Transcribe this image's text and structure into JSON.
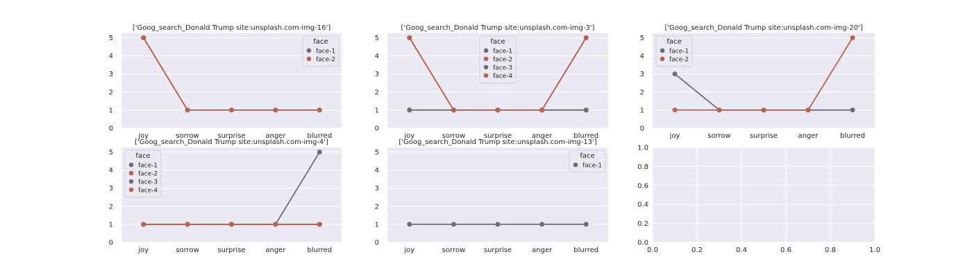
{
  "legend_title": "face",
  "colors": {
    "face-1": "#6b6f74",
    "face-2": "#c0604a",
    "face-3": "#6b6f74",
    "face-4": "#c0604a",
    "panel_bg": "#eaeaf2",
    "grid": "#ffffff",
    "text": "#262626"
  },
  "chart_data": [
    {
      "type": "line",
      "title": "['Goog_search_Donald Trump site:unsplash.com-img-16']",
      "categories": [
        "joy",
        "sorrow",
        "surprise",
        "anger",
        "blurred"
      ],
      "yticks": [
        "0",
        "1",
        "2",
        "3",
        "4",
        "5"
      ],
      "ylim": [
        0,
        5.25
      ],
      "legend_position": "upper right",
      "series": [
        {
          "name": "face-1",
          "values": [
            5,
            1,
            1,
            1,
            1
          ]
        },
        {
          "name": "face-2",
          "values": [
            5,
            1,
            1,
            1,
            1
          ]
        }
      ]
    },
    {
      "type": "line",
      "title": "['Goog_search_Donald Trump site:unsplash.com-img-3']",
      "categories": [
        "joy",
        "sorrow",
        "surprise",
        "anger",
        "blurred"
      ],
      "yticks": [
        "0",
        "1",
        "2",
        "3",
        "4",
        "5"
      ],
      "ylim": [
        0,
        5.25
      ],
      "legend_position": "upper center",
      "series": [
        {
          "name": "face-1",
          "values": [
            5,
            1,
            1,
            1,
            5
          ]
        },
        {
          "name": "face-2",
          "values": [
            1,
            1,
            1,
            1,
            1
          ]
        },
        {
          "name": "face-3",
          "values": [
            1,
            1,
            1,
            1,
            1
          ]
        },
        {
          "name": "face-4",
          "values": [
            5,
            1,
            1,
            1,
            5
          ]
        }
      ]
    },
    {
      "type": "line",
      "title": "['Goog_search_Donald Trump site:unsplash.com-img-20']",
      "categories": [
        "joy",
        "sorrow",
        "surprise",
        "anger",
        "blurred"
      ],
      "yticks": [
        "0",
        "1",
        "2",
        "3",
        "4",
        "5"
      ],
      "ylim": [
        0,
        5.25
      ],
      "legend_position": "upper left",
      "series": [
        {
          "name": "face-1",
          "values": [
            3,
            1,
            1,
            1,
            1
          ]
        },
        {
          "name": "face-2",
          "values": [
            1,
            1,
            1,
            1,
            5
          ]
        }
      ]
    },
    {
      "type": "line",
      "title": "['Goog_search_Donald Trump site:unsplash.com-img-4']",
      "categories": [
        "joy",
        "sorrow",
        "surprise",
        "anger",
        "blurred"
      ],
      "yticks": [
        "0",
        "1",
        "2",
        "3",
        "4",
        "5"
      ],
      "ylim": [
        0,
        5.25
      ],
      "legend_position": "upper left",
      "series": [
        {
          "name": "face-1",
          "values": [
            1,
            1,
            1,
            1,
            5
          ]
        },
        {
          "name": "face-2",
          "values": [
            1,
            1,
            1,
            1,
            1
          ]
        },
        {
          "name": "face-3",
          "values": [
            1,
            1,
            1,
            1,
            1
          ]
        },
        {
          "name": "face-4",
          "values": [
            1,
            1,
            1,
            1,
            1
          ]
        }
      ]
    },
    {
      "type": "line",
      "title": "['Goog_search_Donald Trump site:unsplash.com-img-13']",
      "categories": [
        "joy",
        "sorrow",
        "surprise",
        "anger",
        "blurred"
      ],
      "yticks": [
        "0",
        "1",
        "2",
        "3",
        "4",
        "5"
      ],
      "ylim": [
        0,
        5.25
      ],
      "legend_position": "upper right",
      "series": [
        {
          "name": "face-1",
          "values": [
            1,
            1,
            1,
            1,
            1
          ]
        }
      ]
    },
    {
      "type": "empty",
      "title": "",
      "xticks": [
        "0.0",
        "0.2",
        "0.4",
        "0.6",
        "0.8",
        "1.0"
      ],
      "yticks": [
        "0.0",
        "0.2",
        "0.4",
        "0.6",
        "0.8",
        "1.0"
      ],
      "xlim": [
        0,
        1
      ],
      "ylim": [
        0,
        1
      ]
    }
  ]
}
